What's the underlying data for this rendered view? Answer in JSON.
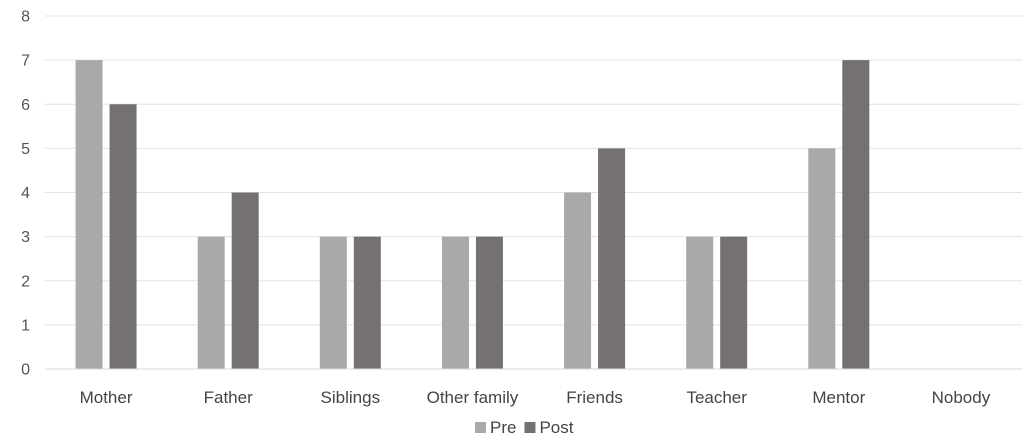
{
  "chart_data": {
    "type": "bar",
    "categories": [
      "Mother",
      "Father",
      "Siblings",
      "Other family",
      "Friends",
      "Teacher",
      "Mentor",
      "Nobody"
    ],
    "series": [
      {
        "name": "Pre",
        "values": [
          7,
          3,
          3,
          3,
          4,
          3,
          5,
          0
        ],
        "color": "#aba8a8"
      },
      {
        "name": "Post",
        "values": [
          6,
          4,
          3,
          3,
          5,
          3,
          7,
          0
        ],
        "color": "#767171"
      }
    ],
    "ylim": [
      0,
      8
    ],
    "yticks": [
      0,
      1,
      2,
      3,
      4,
      5,
      6,
      7,
      8
    ],
    "grid": true,
    "legend": "bottom",
    "title": "",
    "xlabel": "",
    "ylabel": ""
  }
}
